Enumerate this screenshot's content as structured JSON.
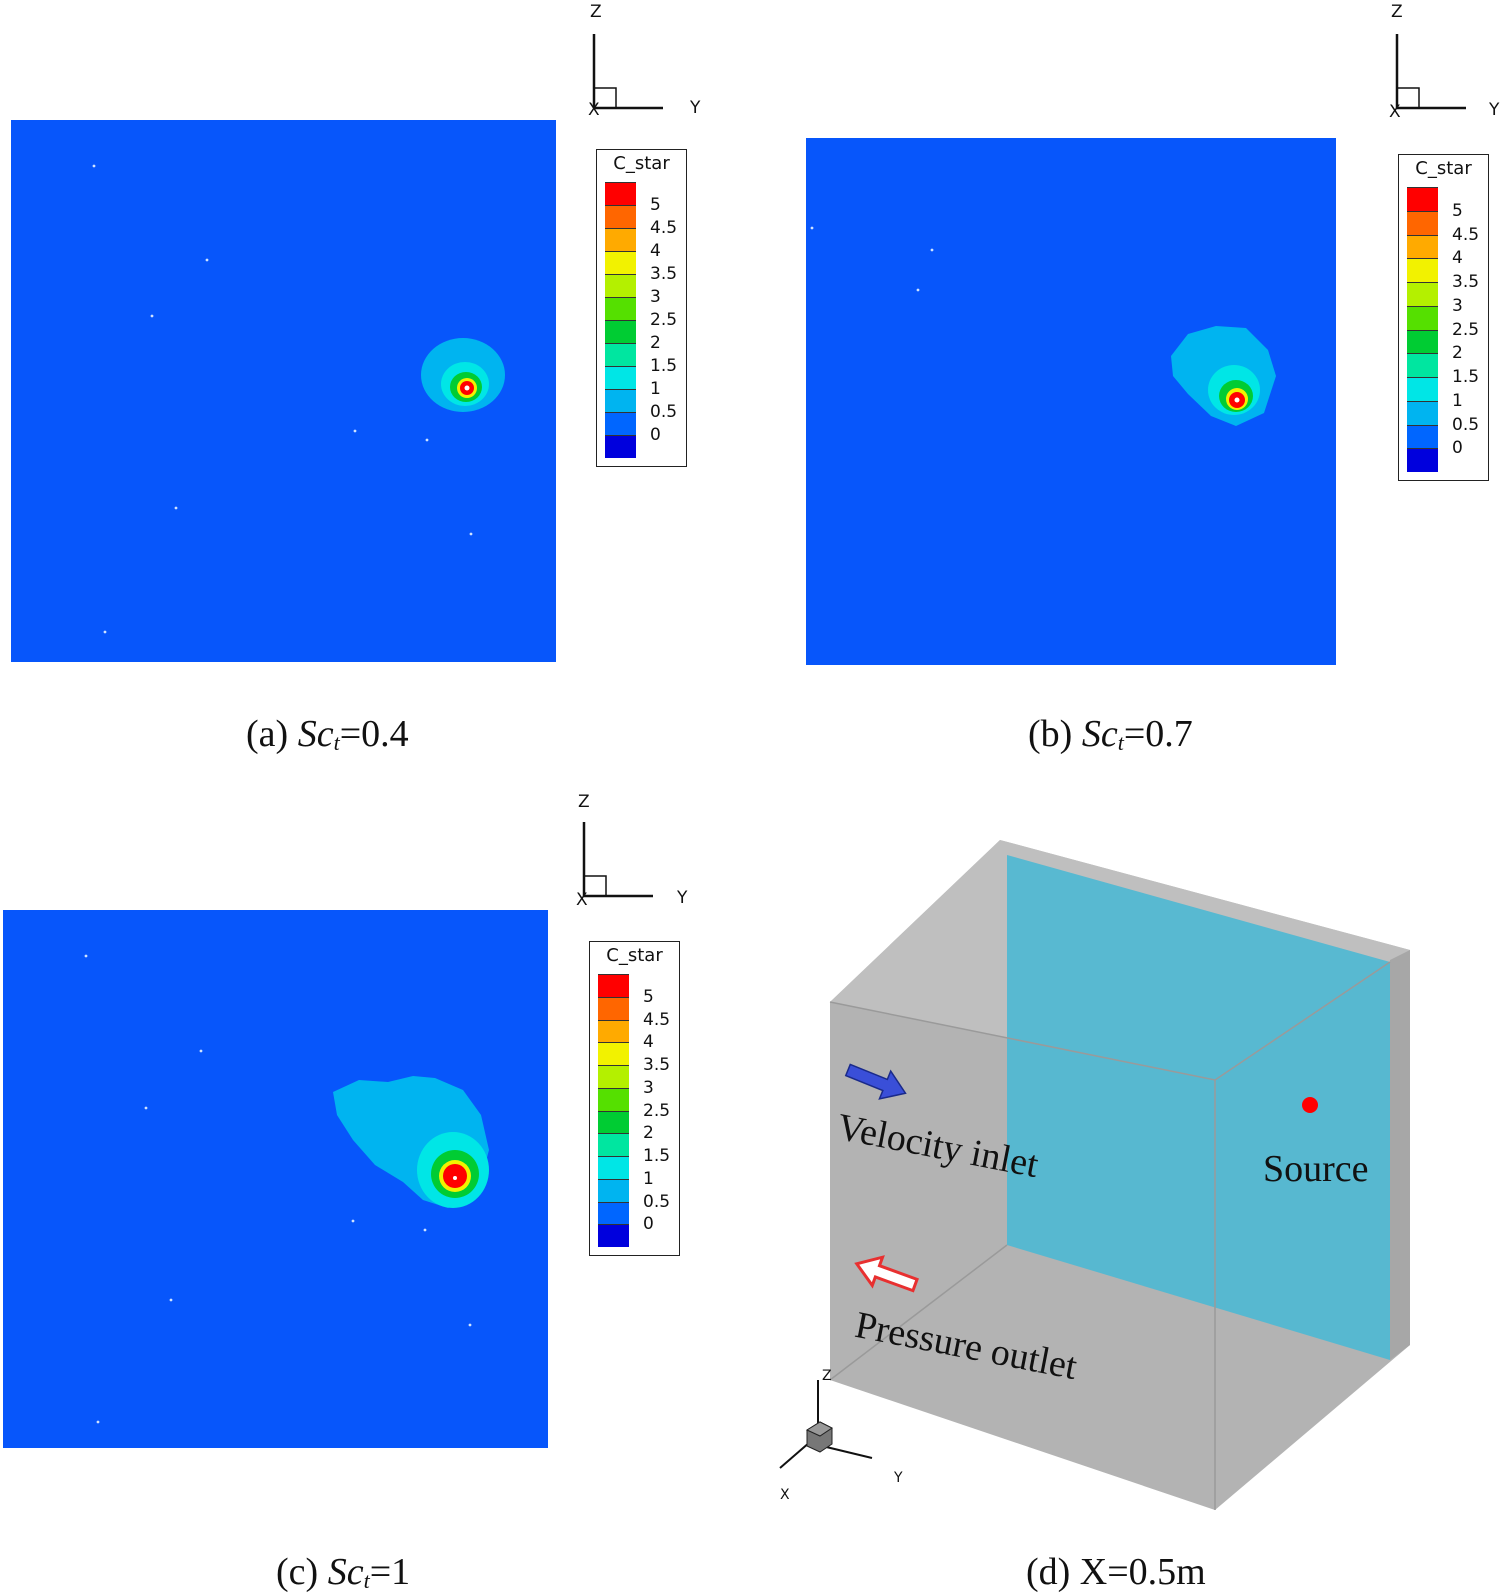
{
  "panels": [
    {
      "id": "a",
      "caption_prefix": "(a) ",
      "caption_var": "Sc",
      "caption_sub": "t",
      "caption_value": "=0.4"
    },
    {
      "id": "b",
      "caption_prefix": "(b) ",
      "caption_var": "Sc",
      "caption_sub": "t",
      "caption_value": "=0.7"
    },
    {
      "id": "c",
      "caption_prefix": "(c) ",
      "caption_var": "Sc",
      "caption_sub": "t",
      "caption_value": "=1"
    },
    {
      "id": "d",
      "caption_text": "(d) X=0.5m"
    }
  ],
  "legend": {
    "title": "C_star",
    "ticks": [
      "5",
      "4.5",
      "4",
      "3.5",
      "3",
      "2.5",
      "2",
      "1.5",
      "1",
      "0.5",
      "0"
    ],
    "colors": [
      "#ff0000",
      "#ff6600",
      "#ffaa00",
      "#f2f200",
      "#b4f000",
      "#55e000",
      "#00cc33",
      "#00e6a0",
      "#00e6e6",
      "#00b4f0",
      "#0066ff",
      "#0000dd"
    ]
  },
  "axis_labels": {
    "z": "Z",
    "y": "Y",
    "x": "X"
  },
  "domain_diagram": {
    "velocity_inlet": "Velocity inlet",
    "pressure_outlet": "Pressure outlet",
    "source": "Source",
    "colors": {
      "box": "#b3b3b3",
      "plane": "#4fb8d2",
      "source": "#ff0000",
      "inlet_arrow": "#3a4fd8",
      "outlet_arrow": "#e83030"
    }
  }
}
